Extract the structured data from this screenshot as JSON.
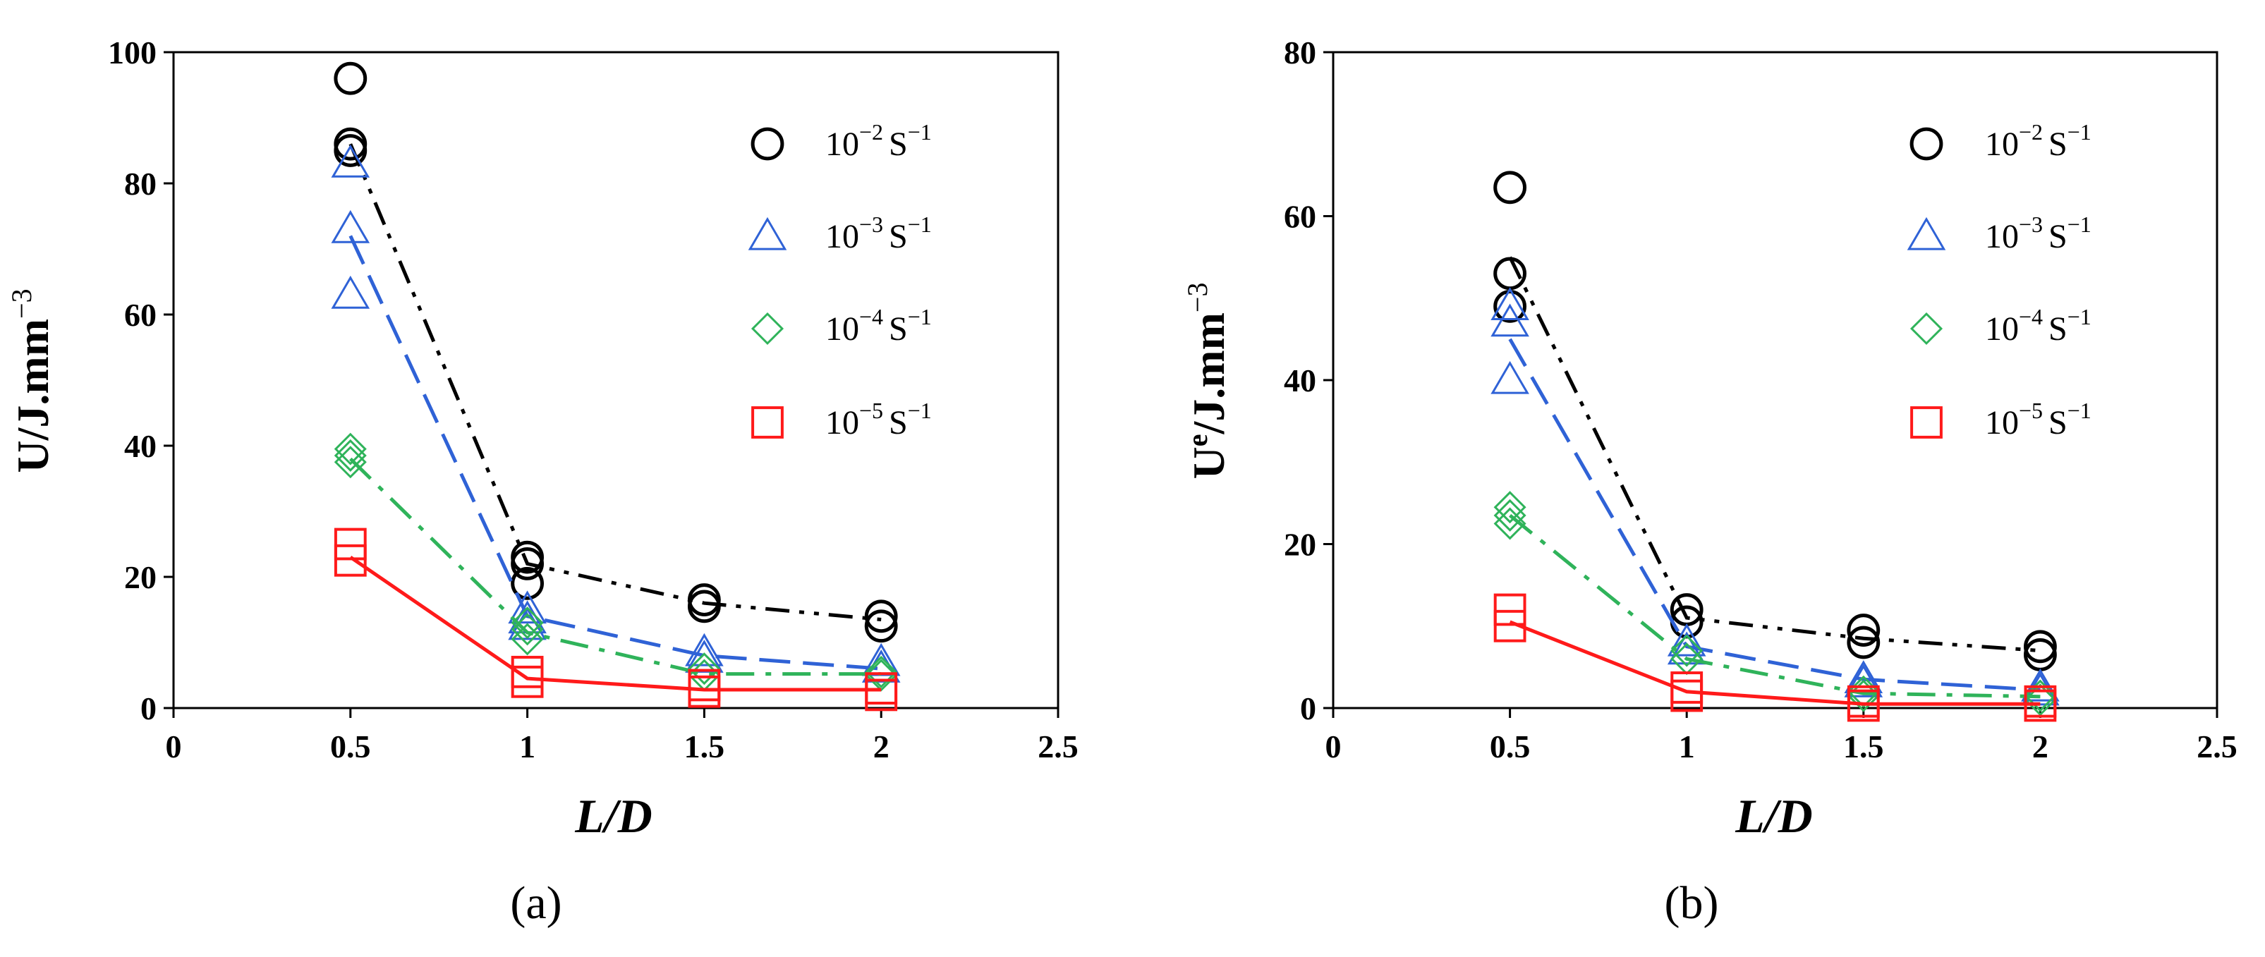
{
  "chart_data": [
    {
      "type": "scatter",
      "panel_label": "(a)",
      "xlabel": "L/D",
      "ylabel": "U/J.mm",
      "ylabel_sup": "−3",
      "xlim": [
        0,
        2.5
      ],
      "ylim": [
        0,
        100
      ],
      "xticks": [
        "0",
        "0.5",
        "1",
        "1.5",
        "2",
        "2.5"
      ],
      "yticks": [
        "0",
        "20",
        "40",
        "60",
        "80",
        "100"
      ],
      "legend_position": "top-right",
      "x": [
        0.5,
        1,
        1.5,
        2
      ],
      "series": [
        {
          "name": "10−2 S−1",
          "label_base": "10",
          "label_exp": "−2",
          "label_unit": "S",
          "label_unit_exp": "−1",
          "marker": "circle",
          "color": "#000000",
          "line": "dashdotdot",
          "points": [
            [
              0.5,
              96
            ],
            [
              0.5,
              86
            ],
            [
              0.5,
              85
            ],
            [
              1,
              23
            ],
            [
              1,
              22
            ],
            [
              1,
              19
            ],
            [
              1.5,
              16.5
            ],
            [
              1.5,
              15.5
            ],
            [
              2,
              14
            ],
            [
              2,
              12.5
            ]
          ],
          "fit": [
            86,
            22,
            16,
            13.5
          ]
        },
        {
          "name": "10−3 S−1",
          "label_base": "10",
          "label_exp": "−3",
          "label_unit": "S",
          "label_unit_exp": "−1",
          "marker": "triangle",
          "color": "#2f62d6",
          "line": "dashed",
          "points": [
            [
              0.5,
              83
            ],
            [
              0.5,
              73
            ],
            [
              0.5,
              63
            ],
            [
              1,
              15
            ],
            [
              1,
              13.5
            ],
            [
              1,
              12.5
            ],
            [
              1.5,
              8.5
            ],
            [
              1.5,
              7.5
            ],
            [
              2,
              7
            ],
            [
              2,
              6
            ]
          ],
          "fit": [
            72,
            14,
            8,
            6
          ]
        },
        {
          "name": "10−4 S−1",
          "label_base": "10",
          "label_exp": "−4",
          "label_unit": "S",
          "label_unit_exp": "−1",
          "marker": "diamond",
          "color": "#2fb35a",
          "line": "dashdot",
          "points": [
            [
              0.5,
              39.5
            ],
            [
              0.5,
              38.5
            ],
            [
              0.5,
              37.5
            ],
            [
              1,
              13
            ],
            [
              1,
              12
            ],
            [
              1,
              10.5
            ],
            [
              1.5,
              6
            ],
            [
              1.5,
              5
            ],
            [
              2,
              5.5
            ],
            [
              2,
              5
            ]
          ],
          "fit": [
            38,
            11.5,
            5.2,
            5.2
          ]
        },
        {
          "name": "10−5 S−1",
          "label_base": "10",
          "label_exp": "−5",
          "label_unit": "S",
          "label_unit_exp": "−1",
          "marker": "square",
          "color": "#ff1a1a",
          "line": "solid",
          "points": [
            [
              0.5,
              25
            ],
            [
              0.5,
              22.5
            ],
            [
              1,
              5.5
            ],
            [
              1,
              4
            ],
            [
              1.5,
              3.5
            ],
            [
              1.5,
              2.5
            ],
            [
              2,
              3
            ],
            [
              2,
              2
            ]
          ],
          "fit": [
            23,
            4.5,
            2.8,
            2.8
          ]
        }
      ]
    },
    {
      "type": "scatter",
      "panel_label": "(b)",
      "xlabel": "L/D",
      "ylabel": "U",
      "ylabel_sup_e": "e",
      "ylabel_rest": "/J.mm",
      "ylabel_sup": "−3",
      "xlim": [
        0,
        2.5
      ],
      "ylim": [
        0,
        80
      ],
      "xticks": [
        "0",
        "0.5",
        "1",
        "1.5",
        "2",
        "2.5"
      ],
      "yticks": [
        "0",
        "20",
        "40",
        "60",
        "80"
      ],
      "legend_position": "top-right",
      "x": [
        0.5,
        1,
        1.5,
        2
      ],
      "series": [
        {
          "name": "10−2 S−1",
          "label_base": "10",
          "label_exp": "−2",
          "label_unit": "S",
          "label_unit_exp": "−1",
          "marker": "circle",
          "color": "#000000",
          "line": "dashdotdot",
          "points": [
            [
              0.5,
              63.5
            ],
            [
              0.5,
              53
            ],
            [
              0.5,
              49
            ],
            [
              1,
              12
            ],
            [
              1,
              10.5
            ],
            [
              1.5,
              9.5
            ],
            [
              1.5,
              8
            ],
            [
              2,
              7.5
            ],
            [
              2,
              6.5
            ]
          ],
          "fit": [
            55,
            11,
            8.5,
            7
          ]
        },
        {
          "name": "10−3 S−1",
          "label_base": "10",
          "label_exp": "−3",
          "label_unit": "S",
          "label_unit_exp": "−1",
          "marker": "triangle",
          "color": "#2f62d6",
          "line": "dashed",
          "points": [
            [
              0.5,
              49
            ],
            [
              0.5,
              47
            ],
            [
              0.5,
              40
            ],
            [
              1,
              8
            ],
            [
              1,
              7
            ],
            [
              1.5,
              3.5
            ],
            [
              1.5,
              3
            ],
            [
              2,
              2.5
            ],
            [
              2,
              2
            ]
          ],
          "fit": [
            45,
            7.5,
            3.5,
            2.2
          ]
        },
        {
          "name": "10−4 S−1",
          "label_base": "10",
          "label_exp": "−4",
          "label_unit": "S",
          "label_unit_exp": "−1",
          "marker": "diamond",
          "color": "#2fb35a",
          "line": "dashdot",
          "points": [
            [
              0.5,
              24.5
            ],
            [
              0.5,
              23.5
            ],
            [
              0.5,
              22.5
            ],
            [
              1,
              7
            ],
            [
              1,
              6
            ],
            [
              1.5,
              2
            ],
            [
              1.5,
              1.5
            ],
            [
              2,
              1.5
            ],
            [
              2,
              1
            ]
          ],
          "fit": [
            23.5,
            6,
            1.8,
            1.4
          ]
        },
        {
          "name": "10−5 S−1",
          "label_base": "10",
          "label_exp": "−5",
          "label_unit": "S",
          "label_unit_exp": "−1",
          "marker": "square",
          "color": "#ff1a1a",
          "line": "solid",
          "points": [
            [
              0.5,
              12
            ],
            [
              0.5,
              10
            ],
            [
              1,
              2.5
            ],
            [
              1,
              1.5
            ],
            [
              1.5,
              0.8
            ],
            [
              1.5,
              0.3
            ],
            [
              2,
              0.8
            ],
            [
              2,
              0.3
            ]
          ],
          "fit": [
            10.5,
            2,
            0.5,
            0.5
          ]
        }
      ]
    }
  ]
}
